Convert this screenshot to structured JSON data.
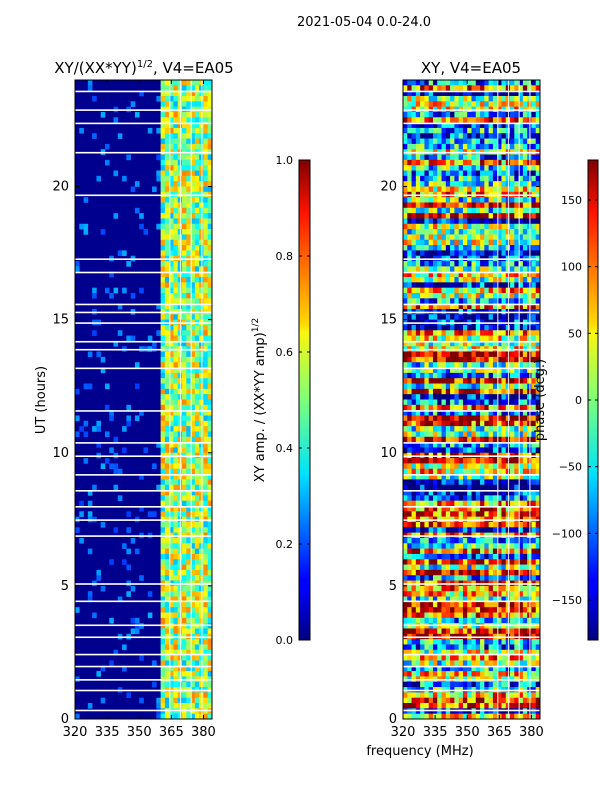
{
  "suptitle": "2021-05-04 0.0-24.0",
  "xlabel_shared": "frequency (MHz)",
  "chart_data": [
    {
      "type": "heatmap",
      "title_prefix": "XY/(XX*YY)",
      "title_exponent": "1/2",
      "title_suffix": ", V4=EA05",
      "xlabel": "frequency (MHz)",
      "ylabel": "UT (hours)",
      "xlim": [
        320,
        384
      ],
      "ylim": [
        0,
        24
      ],
      "xticks": [
        320,
        335,
        350,
        365,
        380
      ],
      "yticks": [
        0,
        5,
        10,
        15,
        20
      ],
      "colormap": "jet",
      "colorbar": {
        "label_prefix": "XY amp. / (XX*YY amp)",
        "label_exponent": "1/2",
        "range": [
          0.0,
          1.0
        ],
        "ticks": [
          0.0,
          0.2,
          0.4,
          0.6,
          0.8,
          1.0
        ],
        "tick_labels": [
          "0.0",
          "0.2",
          "0.4",
          "0.6",
          "0.8",
          "1.0"
        ]
      }
    },
    {
      "type": "heatmap",
      "title": "XY, V4=EA05",
      "xlabel": "frequency (MHz)",
      "ylabel": "",
      "xlim": [
        320,
        384
      ],
      "ylim": [
        0,
        24
      ],
      "xticks": [
        320,
        335,
        350,
        365,
        380
      ],
      "yticks": [
        0,
        5,
        10,
        15,
        20
      ],
      "colormap": "jet",
      "colorbar": {
        "label": "phase (deg.)",
        "range": [
          -180,
          180
        ],
        "ticks": [
          -150,
          -100,
          -50,
          0,
          50,
          100,
          150
        ],
        "tick_labels": [
          "−150",
          "−100",
          "−50",
          "0",
          "50",
          "100",
          "150"
        ]
      }
    }
  ]
}
